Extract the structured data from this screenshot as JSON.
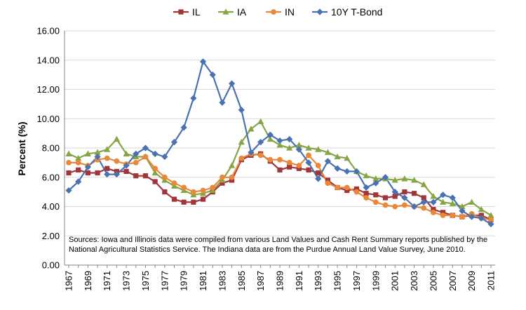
{
  "chart_data": {
    "type": "line",
    "title": "",
    "xlabel": "",
    "ylabel": "Percent (%)",
    "ylim": [
      0,
      16
    ],
    "y_ticks": [
      "0.00",
      "2.00",
      "4.00",
      "6.00",
      "8.00",
      "10.00",
      "12.00",
      "14.00",
      "16.00"
    ],
    "x_tick_labels": [
      "1967",
      "1969",
      "1971",
      "1973",
      "1975",
      "1977",
      "1979",
      "1981",
      "1983",
      "1985",
      "1987",
      "1989",
      "1991",
      "1993",
      "1995",
      "1997",
      "1999",
      "2001",
      "2003",
      "2005",
      "2007",
      "2009",
      "2011"
    ],
    "grid": true,
    "legend_position": "top",
    "x": [
      1967,
      1968,
      1969,
      1970,
      1971,
      1972,
      1973,
      1974,
      1975,
      1976,
      1977,
      1978,
      1979,
      1980,
      1981,
      1982,
      1983,
      1984,
      1985,
      1986,
      1987,
      1988,
      1989,
      1990,
      1991,
      1992,
      1993,
      1994,
      1995,
      1996,
      1997,
      1998,
      1999,
      2000,
      2001,
      2002,
      2003,
      2004,
      2005,
      2006,
      2007,
      2008,
      2009,
      2010,
      2011
    ],
    "series": [
      {
        "name": "IL",
        "color": "#a0353a",
        "marker": "square",
        "values": [
          6.3,
          6.5,
          6.3,
          6.3,
          6.6,
          6.4,
          6.4,
          6.1,
          6.1,
          5.7,
          5.0,
          4.5,
          4.3,
          4.3,
          4.5,
          5.0,
          5.6,
          5.8,
          7.2,
          7.5,
          7.6,
          7.1,
          6.5,
          6.7,
          6.6,
          6.5,
          6.3,
          5.8,
          5.3,
          5.1,
          5.2,
          4.9,
          4.8,
          4.6,
          4.7,
          5.0,
          4.9,
          4.6,
          3.8,
          3.6,
          3.4,
          3.3,
          3.4,
          3.4,
          3.1
        ]
      },
      {
        "name": "IA",
        "color": "#86a544",
        "marker": "triangle",
        "values": [
          7.6,
          7.3,
          7.6,
          7.7,
          7.9,
          8.6,
          7.6,
          7.4,
          7.4,
          6.3,
          5.8,
          5.4,
          5.1,
          4.8,
          4.9,
          5.1,
          5.8,
          6.8,
          8.4,
          9.3,
          9.8,
          8.6,
          8.2,
          8.0,
          8.2,
          8.0,
          7.9,
          7.7,
          7.4,
          7.3,
          6.4,
          6.1,
          5.9,
          5.9,
          5.8,
          5.9,
          5.8,
          5.5,
          4.7,
          4.3,
          4.2,
          4.0,
          4.3,
          3.8,
          3.4
        ]
      },
      {
        "name": "IN",
        "color": "#e8883a",
        "marker": "circle",
        "values": [
          7.0,
          7.0,
          6.8,
          7.2,
          7.3,
          7.1,
          6.9,
          7.0,
          7.4,
          6.6,
          6.0,
          5.6,
          5.3,
          5.0,
          5.1,
          5.3,
          6.0,
          6.0,
          7.3,
          7.6,
          7.5,
          7.2,
          7.2,
          7.0,
          6.8,
          7.5,
          6.8,
          5.6,
          5.3,
          5.3,
          5.0,
          4.6,
          4.3,
          4.1,
          4.0,
          4.1,
          4.0,
          3.9,
          3.6,
          3.4,
          3.4,
          3.3,
          3.5,
          3.2,
          3.1
        ]
      },
      {
        "name": "10Y T-Bond",
        "color": "#4a72b0",
        "marker": "diamond",
        "values": [
          5.1,
          5.7,
          6.7,
          7.4,
          6.2,
          6.2,
          6.8,
          7.6,
          8.0,
          7.6,
          7.4,
          8.4,
          9.4,
          11.4,
          13.9,
          13.0,
          11.1,
          12.4,
          10.6,
          7.7,
          8.4,
          8.9,
          8.5,
          8.6,
          7.9,
          7.0,
          5.9,
          7.1,
          6.6,
          6.4,
          6.4,
          5.3,
          5.6,
          6.0,
          5.0,
          4.6,
          4.0,
          4.3,
          4.3,
          4.8,
          4.6,
          3.7,
          3.3,
          3.2,
          2.8
        ]
      }
    ],
    "annotation": {
      "line1": "Sources: Iowa and Illinois data were compiled from various Land Values and Cash Rent Summary reports published by the",
      "line2": "National Agricultural Statistics Service. The Indiana data are from the Purdue Annual Land Value Survey, June 2010."
    }
  }
}
